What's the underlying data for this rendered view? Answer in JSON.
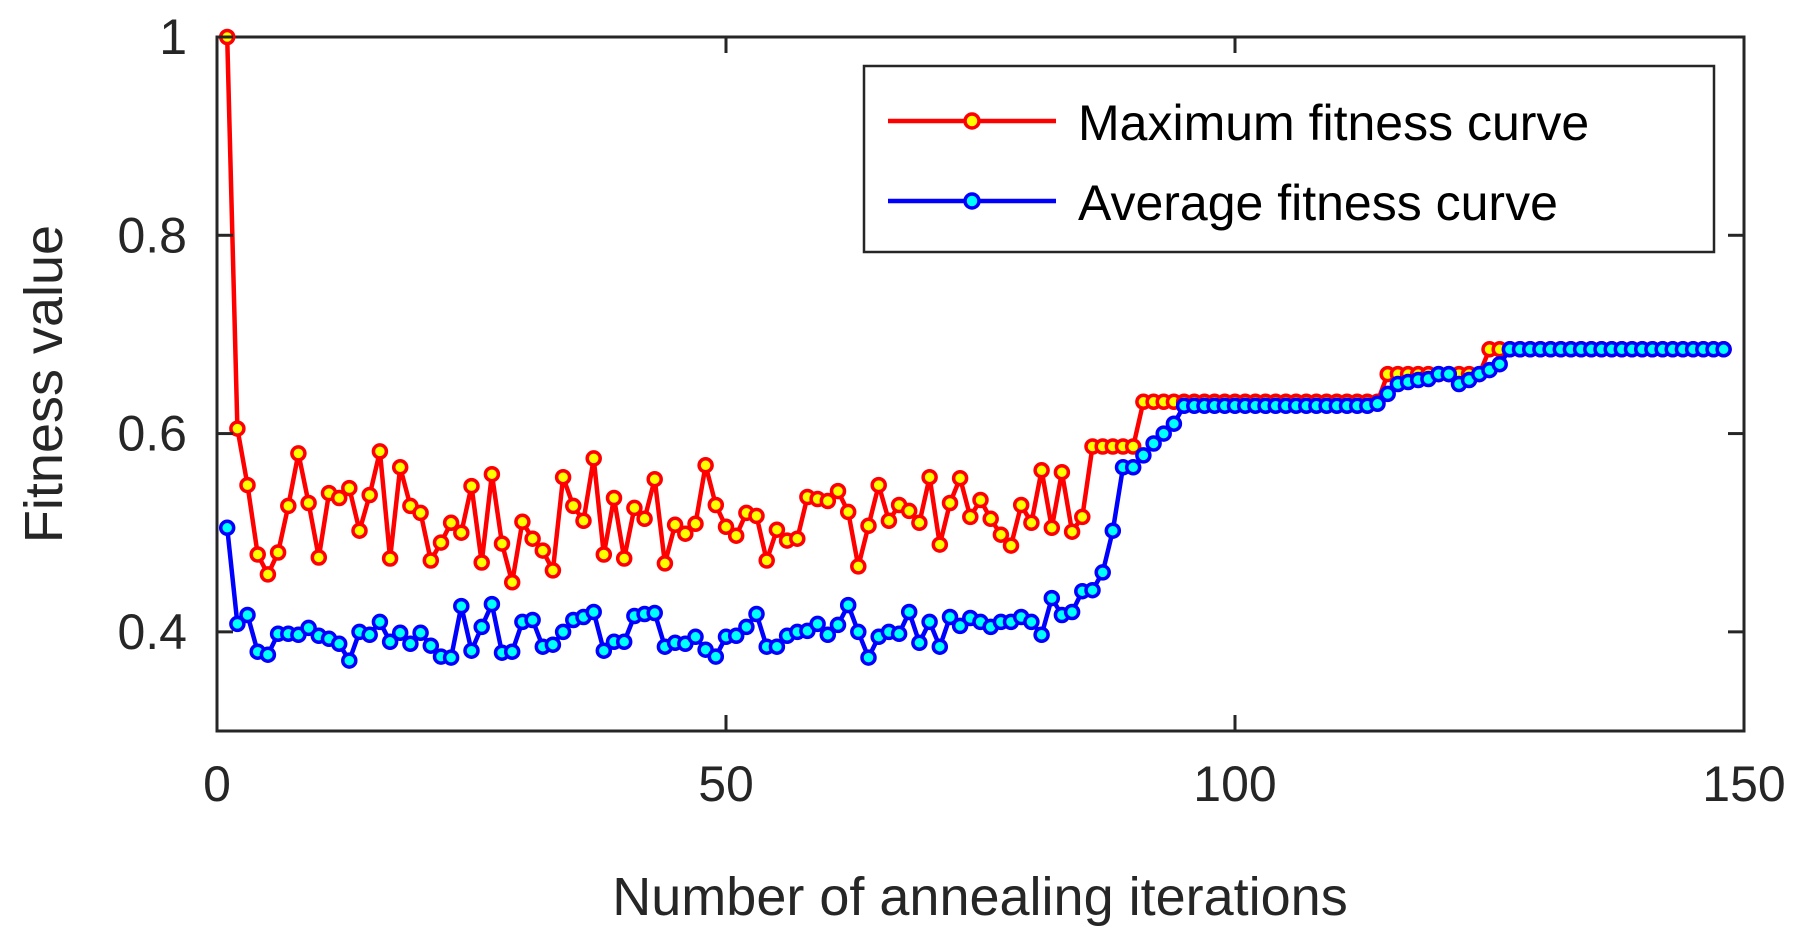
{
  "chart_data": {
    "type": "line",
    "title": "",
    "xlabel": "Number of annealing iterations",
    "ylabel": "Fitness value",
    "xlim": [
      0,
      150
    ],
    "ylim": [
      0.3,
      1.0
    ],
    "xticks": [
      0,
      50,
      100,
      150
    ],
    "xtick_labels": [
      "0",
      "50",
      "100",
      "150"
    ],
    "yticks": [
      0.4,
      0.6,
      0.8,
      1.0
    ],
    "ytick_labels": [
      "0.4",
      "0.6",
      "0.8",
      "1"
    ],
    "grid": false,
    "legend_position": "top-right",
    "marker_fill": "#ffff00",
    "series": [
      {
        "name": "Maximum fitness curve",
        "color": "#ff0000",
        "marker_fill": "#ffff00",
        "values": [
          1.0,
          0.605,
          0.548,
          0.478,
          0.458,
          0.48,
          0.527,
          0.58,
          0.53,
          0.475,
          0.54,
          0.535,
          0.545,
          0.502,
          0.538,
          0.582,
          0.474,
          0.566,
          0.527,
          0.52,
          0.472,
          0.49,
          0.51,
          0.5,
          0.547,
          0.47,
          0.559,
          0.489,
          0.45,
          0.511,
          0.494,
          0.482,
          0.462,
          0.556,
          0.527,
          0.512,
          0.575,
          0.478,
          0.535,
          0.474,
          0.525,
          0.514,
          0.554,
          0.469,
          0.508,
          0.499,
          0.509,
          0.568,
          0.528,
          0.506,
          0.497,
          0.52,
          0.517,
          0.472,
          0.503,
          0.492,
          0.494,
          0.536,
          0.534,
          0.532,
          0.542,
          0.521,
          0.466,
          0.507,
          0.548,
          0.512,
          0.528,
          0.522,
          0.51,
          0.556,
          0.488,
          0.53,
          0.555,
          0.516,
          0.533,
          0.514,
          0.498,
          0.487,
          0.528,
          0.51,
          0.563,
          0.505,
          0.561,
          0.501,
          0.516,
          0.587,
          0.587,
          0.587,
          0.587,
          0.587,
          0.632,
          0.632,
          0.632,
          0.632,
          0.632,
          0.632,
          0.632,
          0.632,
          0.632,
          0.632,
          0.632,
          0.632,
          0.632,
          0.632,
          0.632,
          0.632,
          0.632,
          0.632,
          0.632,
          0.632,
          0.632,
          0.632,
          0.632,
          0.632,
          0.66,
          0.66,
          0.66,
          0.66,
          0.66,
          0.66,
          0.66,
          0.66,
          0.66,
          0.66,
          0.685,
          0.685,
          0.685,
          0.685,
          0.685,
          0.685,
          0.685,
          0.685,
          0.685,
          0.685,
          0.685,
          0.685,
          0.685,
          0.685,
          0.685,
          0.685,
          0.685,
          0.685,
          0.685,
          0.685,
          0.685,
          0.685,
          0.685,
          0.685
        ]
      },
      {
        "name": "Average fitness curve",
        "color": "#0000ff",
        "marker_fill": "#00ffff",
        "values": [
          0.505,
          0.408,
          0.417,
          0.38,
          0.377,
          0.398,
          0.398,
          0.397,
          0.404,
          0.396,
          0.393,
          0.388,
          0.371,
          0.4,
          0.397,
          0.41,
          0.39,
          0.399,
          0.388,
          0.399,
          0.386,
          0.375,
          0.374,
          0.426,
          0.381,
          0.405,
          0.428,
          0.379,
          0.38,
          0.41,
          0.412,
          0.385,
          0.387,
          0.4,
          0.412,
          0.415,
          0.42,
          0.381,
          0.39,
          0.39,
          0.416,
          0.418,
          0.419,
          0.385,
          0.389,
          0.388,
          0.395,
          0.382,
          0.375,
          0.395,
          0.396,
          0.405,
          0.418,
          0.385,
          0.385,
          0.396,
          0.4,
          0.401,
          0.408,
          0.397,
          0.407,
          0.427,
          0.4,
          0.374,
          0.395,
          0.4,
          0.398,
          0.42,
          0.389,
          0.41,
          0.385,
          0.415,
          0.406,
          0.414,
          0.41,
          0.405,
          0.41,
          0.41,
          0.415,
          0.41,
          0.397,
          0.434,
          0.417,
          0.42,
          0.441,
          0.442,
          0.46,
          0.502,
          0.566,
          0.566,
          0.578,
          0.59,
          0.6,
          0.61,
          0.628,
          0.628,
          0.628,
          0.628,
          0.628,
          0.628,
          0.628,
          0.628,
          0.628,
          0.628,
          0.628,
          0.628,
          0.628,
          0.628,
          0.628,
          0.628,
          0.628,
          0.628,
          0.628,
          0.63,
          0.64,
          0.65,
          0.652,
          0.654,
          0.655,
          0.66,
          0.66,
          0.65,
          0.654,
          0.66,
          0.664,
          0.67,
          0.685,
          0.685,
          0.685,
          0.685,
          0.685,
          0.685,
          0.685,
          0.685,
          0.685,
          0.685,
          0.685,
          0.685,
          0.685,
          0.685,
          0.685,
          0.685,
          0.685,
          0.685,
          0.685,
          0.685,
          0.685,
          0.685
        ]
      }
    ]
  }
}
